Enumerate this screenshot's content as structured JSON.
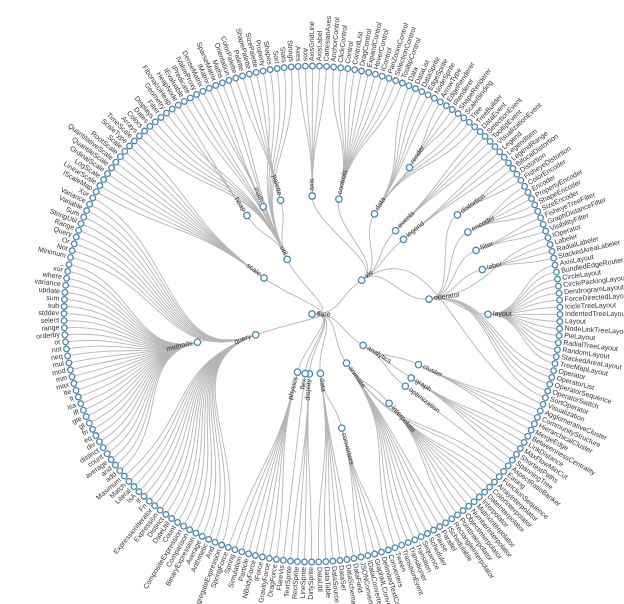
{
  "root": "flare",
  "children": [
    {
      "name": "vis",
      "children": [
        {
          "name": "axis",
          "children": [
            "Axes",
            "Axis",
            "AxisGridLine",
            "AxisLabel",
            "CartesianAxes"
          ]
        },
        {
          "name": "controls",
          "children": [
            "AnchorControl",
            "ClickControl",
            "Control",
            "ControlList",
            "DragControl",
            "ExpandControl",
            "HoverControl",
            "IControl",
            "PanZoomControl",
            "SelectionControl",
            "TooltipControl"
          ]
        },
        {
          "name": "data",
          "children": [
            "Data",
            "DataList",
            "DataSprite",
            "EdgeSprite",
            "NodeSprite",
            {
              "name": "render",
              "children": [
                "ArrowType",
                "EdgeRenderer",
                "IRenderer",
                "ShapeRenderer"
              ]
            },
            "ScaleBinding",
            "Tree",
            "TreeBuilder"
          ]
        },
        {
          "name": "events",
          "children": [
            "DataEvent",
            "SelectionEvent",
            "TooltipEvent",
            "VisualizationEvent"
          ]
        },
        {
          "name": "legend",
          "children": [
            "Legend",
            "LegendItem",
            "LegendRange"
          ]
        },
        {
          "name": "operator",
          "children": [
            {
              "name": "distortion",
              "children": [
                "BifocalDistortion",
                "Distortion",
                "FisheyeDistortion"
              ]
            },
            {
              "name": "encoder",
              "children": [
                "ColorEncoder",
                "Encoder",
                "PropertyEncoder",
                "ShapeEncoder",
                "SizeEncoder"
              ]
            },
            {
              "name": "filter",
              "children": [
                "FisheyeTreeFilter",
                "GraphDistanceFilter",
                "VisibilityFilter"
              ]
            },
            "IOperator",
            {
              "name": "label",
              "children": [
                "Labeler",
                "RadialLabeler",
                "StackedAreaLabeler"
              ]
            },
            {
              "name": "layout",
              "children": [
                "AxisLayout",
                "BundledEdgeRouter",
                "CircleLayout",
                "CirclePackingLayout",
                "DendrogramLayout",
                "ForceDirectedLayout",
                "IcicleTreeLayout",
                "IndentedTreeLayout",
                "Layout",
                "NodeLinkTreeLayout",
                "PieLayout",
                "RadialTreeLayout",
                "RandomLayout",
                "StackedAreaLayout",
                "TreeMapLayout"
              ]
            },
            "Operator",
            "OperatorList",
            "OperatorSequence",
            "OperatorSwitch",
            "SortOperator"
          ]
        },
        "Visualization"
      ]
    },
    {
      "name": "analytics",
      "children": [
        {
          "name": "cluster",
          "children": [
            "AgglomerativeCluster",
            "CommunityStructure",
            "HierarchicalCluster",
            "MergeEdge"
          ]
        },
        {
          "name": "graph",
          "children": [
            "BetweennessCentrality",
            "LinkDistance",
            "MaxFlowMinCut",
            "ShortestPaths",
            "SpanningTree"
          ]
        },
        {
          "name": "optimization",
          "children": [
            "AspectRatioBanker"
          ]
        }
      ]
    },
    {
      "name": "animate",
      "children": [
        "Easing",
        "FunctionSequence",
        {
          "name": "interpolate",
          "children": [
            "ArrayInterpolator",
            "ColorInterpolator",
            "DateInterpolator",
            "Interpolator",
            "MatrixInterpolator",
            "NumberInterpolator",
            "ObjectInterpolator",
            "PointInterpolator",
            "RectangleInterpolator"
          ]
        },
        "ISchedulable",
        "Parallel",
        "Pause",
        "Scheduler",
        "Sequence",
        "Transition",
        "Transitioner",
        "TransitionEvent",
        "Tween"
      ]
    },
    {
      "name": "data",
      "children": [
        {
          "name": "converters",
          "children": [
            "Converters",
            "DelimitedTextConverter",
            "GraphMLConverter",
            "IDataConverter",
            "JSONConverter"
          ]
        },
        "DataField",
        "DataSchema",
        "DataSet",
        "DataSource",
        "DataTable",
        "DataUtil"
      ]
    },
    {
      "name": "display",
      "children": [
        "DirtySprite",
        "LineSprite",
        "RectSprite",
        "TextSprite"
      ]
    },
    {
      "name": "flex",
      "children": [
        "FlareVis"
      ]
    },
    {
      "name": "physics",
      "children": [
        "DragForce",
        "GravityForce",
        "IForce",
        "NBodyForce",
        "Particle",
        "Simulation",
        "Spring",
        "SpringForce"
      ]
    },
    {
      "name": "query",
      "children": [
        "AggregateExpression",
        "And",
        "Arithmetic",
        "Average",
        "BinaryExpression",
        "Comparison",
        "CompositeExpression",
        "Count",
        "DateUtil",
        "Distinct",
        "Expression",
        "ExpressionIterator",
        "Fn",
        "If",
        "IsA",
        "Literal",
        "Match",
        "Maximum",
        {
          "name": "methods",
          "children": [
            "add",
            "and",
            "average",
            "count",
            "distinct",
            "div",
            "eq",
            "fn",
            "gt",
            "gte",
            "iff",
            "isa",
            "lt",
            "lte",
            "max",
            "min",
            "mod",
            "mul",
            "neq",
            "not",
            "or",
            "orderby",
            "range",
            "select",
            "stddev",
            "sub",
            "sum",
            "update",
            "variance",
            "where",
            "xor",
            "_"
          ]
        },
        "Minimum",
        "Not",
        "Or",
        "Query",
        "Range",
        "StringUtil",
        "Sum",
        "Variable",
        "Variance",
        "Xor"
      ]
    },
    {
      "name": "scale",
      "children": [
        "IScaleMap",
        "LinearScale",
        "LogScale",
        "OrdinalScale",
        "QuantileScale",
        "QuantitativeScale",
        "RootScale",
        "Scale",
        "ScaleType",
        "TimeScale"
      ]
    },
    {
      "name": "util",
      "children": [
        "Arrays",
        "Colors",
        "Dates",
        "Displays",
        "Filter",
        "Geometry",
        {
          "name": "heap",
          "children": [
            "FibonacciHeap",
            "HeapNode"
          ]
        },
        "IEvaluable",
        "IPredicate",
        "IValueProxy",
        {
          "name": "math",
          "children": [
            "DenseMatrix",
            "IMatrix",
            "SparseMatrix"
          ]
        },
        "Maths",
        "Orientation",
        {
          "name": "palette",
          "children": [
            "ColorPalette",
            "Palette",
            "ShapePalette",
            "SizePalette"
          ]
        },
        "Property",
        "Shapes",
        "Sort",
        "Stats",
        "Strings"
      ]
    }
  ]
}
